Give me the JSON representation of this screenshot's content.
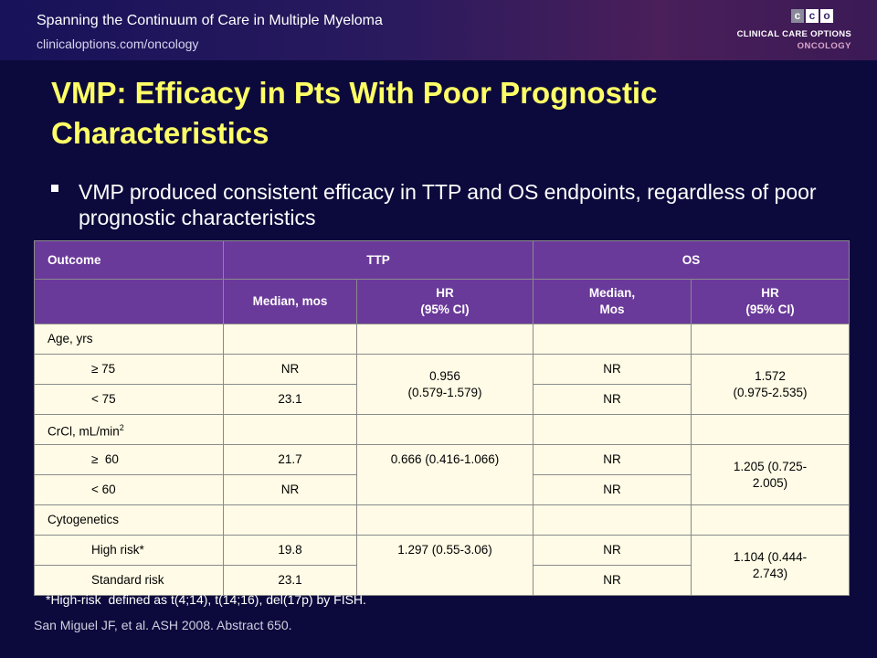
{
  "header": {
    "title": "Spanning the Continuum of Care in Multiple Myeloma",
    "url": "clinicaloptions.com/oncology",
    "logo": {
      "boxes": [
        "c",
        "c",
        "o"
      ],
      "line1": "CLINICAL CARE OPTIONS",
      "line2": "ONCOLOGY"
    }
  },
  "slide": {
    "title": "VMP: Efficacy in Pts With Poor Prognostic Characteristics",
    "bullet": "VMP produced consistent efficacy in TTP and OS endpoints, regardless of poor prognostic characteristics"
  },
  "table": {
    "header_row1": {
      "outcome": "Outcome",
      "ttp": "TTP",
      "os": "OS"
    },
    "header_row2": {
      "ttp_median": "Median, mos",
      "ttp_hr": "HR\n(95% CI)",
      "os_median": "Median,\nMos",
      "os_hr": "HR\n(95% CI)"
    },
    "groups": [
      {
        "label": "Age, yrs",
        "ttp_hr": "0.956\n(0.579-1.579)",
        "os_hr": "1.572\n(0.975-2.535)",
        "rows": [
          {
            "label": "≥ 75",
            "ttp_median": "NR",
            "os_median": "NR"
          },
          {
            "label": "< 75",
            "ttp_median": "23.1",
            "os_median": "NR"
          }
        ]
      },
      {
        "label": "CrCl, mL/min",
        "label_sup": "2",
        "ttp_hr": "0.666 (0.416-1.066)",
        "os_hr": "1.205 (0.725-\n2.005)",
        "rows": [
          {
            "label": "≥  60",
            "ttp_median": "21.7",
            "os_median": "NR"
          },
          {
            "label": "< 60",
            "ttp_median": "NR",
            "os_median": "NR"
          }
        ]
      },
      {
        "label": "Cytogenetics",
        "ttp_hr": "1.297 (0.55-3.06)",
        "os_hr": "1.104 (0.444-\n2.743)",
        "rows": [
          {
            "label": "High risk*",
            "ttp_median": "19.8",
            "os_median": "NR"
          },
          {
            "label": "Standard risk",
            "ttp_median": "23.1",
            "os_median": "NR"
          }
        ]
      }
    ]
  },
  "footnote": "*High-risk  defined as t(4;14), t(14;16), del(17p) by FISH.",
  "citation": "San Miguel JF, et al. ASH 2008. Abstract 650.",
  "colors": {
    "background": "#0c0a3c",
    "title": "#ffff66",
    "table_header": "#6a3a9a",
    "table_body": "#fffbe6"
  }
}
